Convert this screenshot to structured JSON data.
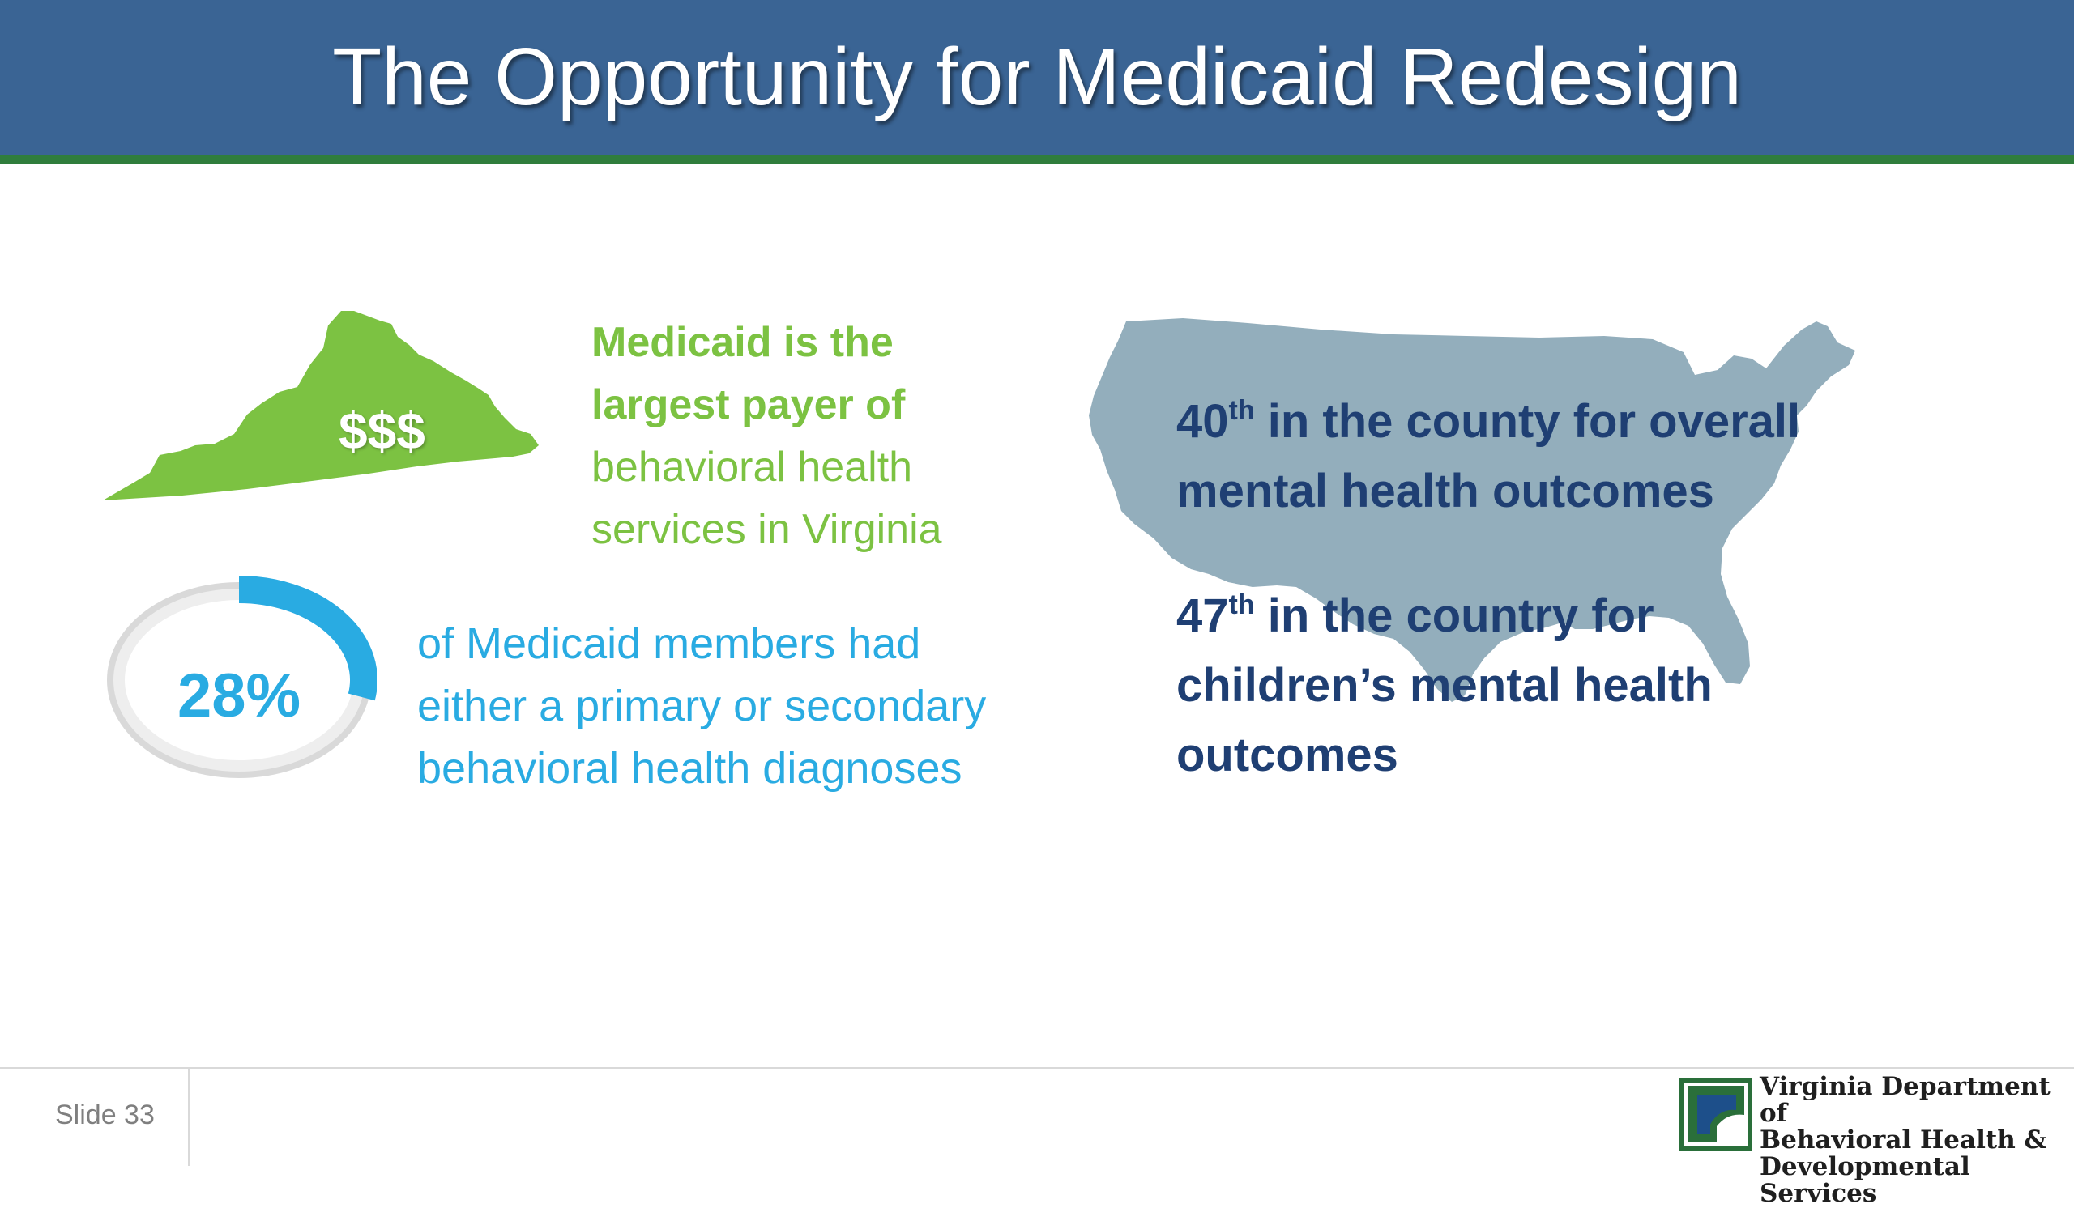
{
  "header": {
    "title": "The Opportunity for Medicaid Redesign"
  },
  "virginia": {
    "icon": "virginia-map-icon",
    "color": "#7cc242",
    "badge": "$$$",
    "line1": "Medicaid is the",
    "line2": "largest payer of",
    "line3": "behavioral health",
    "line4": "services in Virginia"
  },
  "diagnoses": {
    "percent": 28,
    "percent_label": "28%",
    "color": "#29abe2",
    "line1": "of Medicaid members had",
    "line2": "either a primary or secondary",
    "line3": "behavioral health diagnoses"
  },
  "rankings": {
    "icon": "us-map-icon",
    "color": "#1f3f73",
    "adult_rank": "40",
    "adult_rank_suffix": "th",
    "adult_line1_rest": " in the county for overall",
    "adult_line2": "mental health outcomes",
    "child_rank": "47",
    "child_rank_suffix": "th",
    "child_line1_rest": " in the country for",
    "child_line2": "children’s mental health",
    "child_line3": "outcomes"
  },
  "footer": {
    "slide_label": "Slide 33",
    "org_line1": "Virginia Department of",
    "org_line2": "Behavioral Health &",
    "org_line3": "Developmental Services"
  }
}
